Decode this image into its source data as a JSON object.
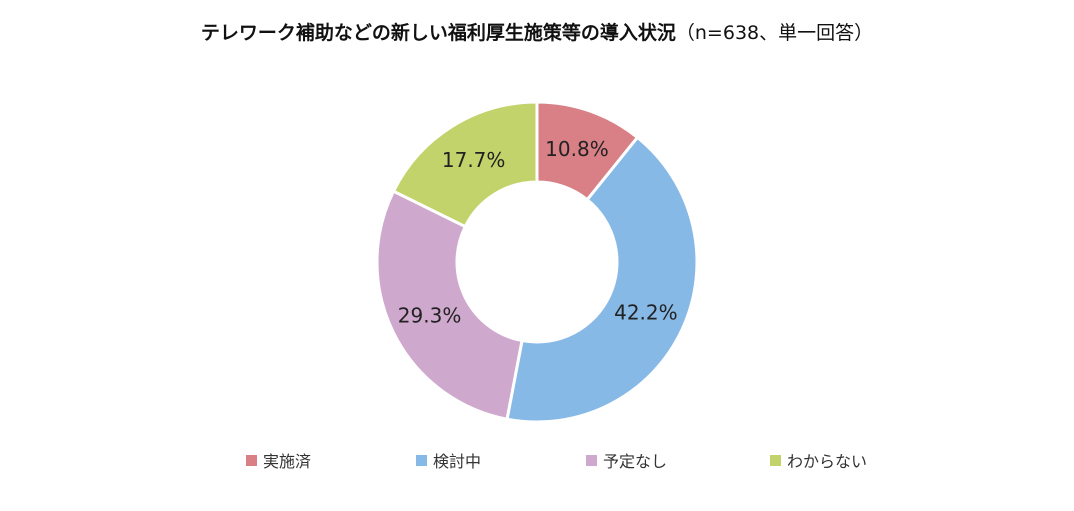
{
  "chart_data": {
    "type": "pie",
    "title": "テレワーク補助などの新しい福利厚生施策等の導入状況",
    "subtitle": "（n=638、単一回答）",
    "categories": [
      "実施済",
      "検討中",
      "予定なし",
      "わからない"
    ],
    "values": [
      10.8,
      42.2,
      29.3,
      17.7
    ],
    "labels": [
      "10.8%",
      "42.2%",
      "29.3%",
      "17.7%"
    ],
    "colors": [
      "#d88086",
      "#87b9e7",
      "#cfa8ce",
      "#c3d36b"
    ],
    "unit": "%",
    "donut": true,
    "legend_position": "bottom"
  }
}
